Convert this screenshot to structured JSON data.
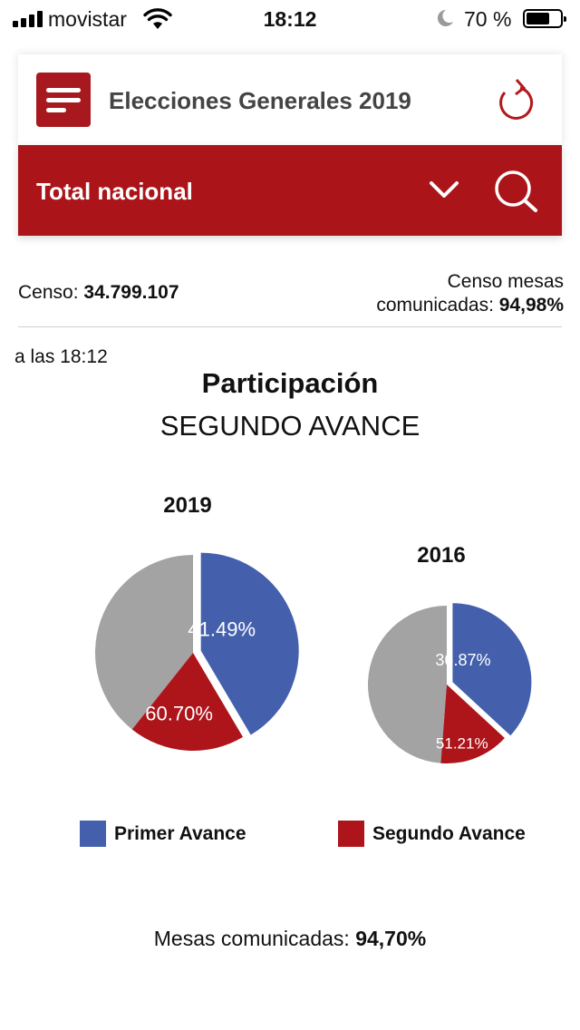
{
  "status_bar": {
    "carrier": "movistar",
    "time": "18:12",
    "battery_percent": "70 %",
    "battery_level": 0.7,
    "icons": [
      "signal-icon",
      "wifi-icon",
      "moon-icon",
      "battery-icon"
    ]
  },
  "header": {
    "title": "Elecciones Generales 2019",
    "menu_icon": "menu-icon",
    "refresh_icon": "refresh-icon"
  },
  "region": {
    "selected": "Total nacional",
    "dropdown_icon": "chevron-down-icon",
    "search_icon": "search-icon"
  },
  "census": {
    "label": "Censo:",
    "value": "34.799.107",
    "mesas_label_line1": "Censo mesas",
    "mesas_label_line2": "comunicadas:",
    "mesas_value": "94,98%"
  },
  "time_note": "a las 18:12",
  "mesas_footer": {
    "label": "Mesas comunicadas:",
    "value": "94,70%"
  },
  "colors": {
    "primer": "#4460ad",
    "segundo": "#ad151b",
    "rest": "#a3a3a3",
    "brand": "#ab1519"
  },
  "chart_data": {
    "type": "pie",
    "title": "Participación",
    "subtitle": "SEGUNDO AVANCE",
    "legend": [
      "Primer Avance",
      "Segundo Avance"
    ],
    "legend_placement": "bottom",
    "pies": [
      {
        "year": "2019",
        "primer_avance": 41.49,
        "segundo_avance": 60.7,
        "primer_label": "41.49%",
        "segundo_label": "60.70%"
      },
      {
        "year": "2016",
        "primer_avance": 36.87,
        "segundo_avance": 51.21,
        "primer_label": "36.87%",
        "segundo_label": "51.21%"
      }
    ]
  }
}
